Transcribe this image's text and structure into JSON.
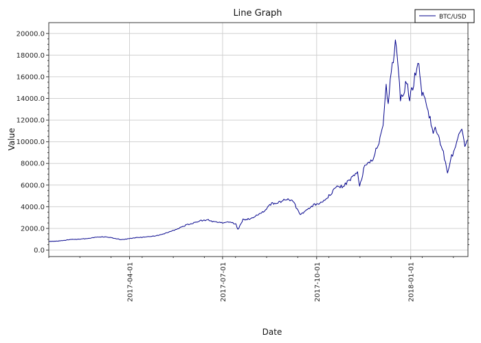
{
  "chart_data": {
    "type": "line",
    "title": "Line Graph",
    "xlabel": "Date",
    "ylabel": "Value",
    "ylim": [
      -600,
      21000
    ],
    "xlim": [
      "2017-01-12",
      "2018-02-26"
    ],
    "grid": true,
    "legend_position": "top-right",
    "y_ticks": [
      "0.0",
      "2000.0",
      "4000.0",
      "6000.0",
      "8000.0",
      "10000.0",
      "12000.0",
      "14000.0",
      "16000.0",
      "18000.0",
      "20000.0"
    ],
    "x_ticks": [
      "2017-04-01",
      "2017-07-01",
      "2017-10-01",
      "2018-01-01"
    ],
    "colors": {
      "line": "#00008b",
      "grid": "#d0d0d0"
    },
    "series": [
      {
        "name": "BTC/USD",
        "x": [
          "2017-01-12",
          "2017-01-20",
          "2017-01-27",
          "2017-02-03",
          "2017-02-10",
          "2017-02-17",
          "2017-02-24",
          "2017-03-03",
          "2017-03-10",
          "2017-03-17",
          "2017-03-24",
          "2017-03-31",
          "2017-04-07",
          "2017-04-14",
          "2017-04-21",
          "2017-04-28",
          "2017-05-05",
          "2017-05-12",
          "2017-05-19",
          "2017-05-26",
          "2017-06-02",
          "2017-06-09",
          "2017-06-16",
          "2017-06-23",
          "2017-06-30",
          "2017-07-07",
          "2017-07-14",
          "2017-07-16",
          "2017-07-21",
          "2017-07-28",
          "2017-08-04",
          "2017-08-11",
          "2017-08-18",
          "2017-08-25",
          "2017-09-01",
          "2017-09-08",
          "2017-09-15",
          "2017-09-22",
          "2017-09-29",
          "2017-10-06",
          "2017-10-13",
          "2017-10-20",
          "2017-10-27",
          "2017-11-03",
          "2017-11-10",
          "2017-11-12",
          "2017-11-17",
          "2017-11-24",
          "2017-12-01",
          "2017-12-05",
          "2017-12-08",
          "2017-12-10",
          "2017-12-13",
          "2017-12-15",
          "2017-12-17",
          "2017-12-20",
          "2017-12-22",
          "2017-12-25",
          "2017-12-28",
          "2017-12-31",
          "2018-01-03",
          "2018-01-06",
          "2018-01-09",
          "2018-01-12",
          "2018-01-16",
          "2018-01-19",
          "2018-01-23",
          "2018-01-26",
          "2018-01-30",
          "2018-02-02",
          "2018-02-06",
          "2018-02-09",
          "2018-02-13",
          "2018-02-16",
          "2018-02-20",
          "2018-02-23",
          "2018-02-26"
        ],
        "values": [
          800,
          820,
          900,
          980,
          1000,
          1050,
          1150,
          1220,
          1200,
          1100,
          950,
          1050,
          1150,
          1180,
          1250,
          1350,
          1500,
          1750,
          2000,
          2300,
          2500,
          2700,
          2800,
          2600,
          2500,
          2600,
          2400,
          1900,
          2800,
          2900,
          3250,
          3600,
          4300,
          4400,
          4700,
          4500,
          3200,
          3800,
          4200,
          4400,
          5000,
          5800,
          5900,
          6500,
          7300,
          5900,
          7800,
          8200,
          10000,
          11500,
          15000,
          13500,
          16800,
          17500,
          19300,
          17000,
          14000,
          14600,
          15500,
          14000,
          15000,
          16500,
          17200,
          14500,
          13500,
          12500,
          11000,
          11200,
          10000,
          9000,
          7000,
          8500,
          9200,
          10500,
          11200,
          9800,
          10200
        ]
      }
    ]
  }
}
